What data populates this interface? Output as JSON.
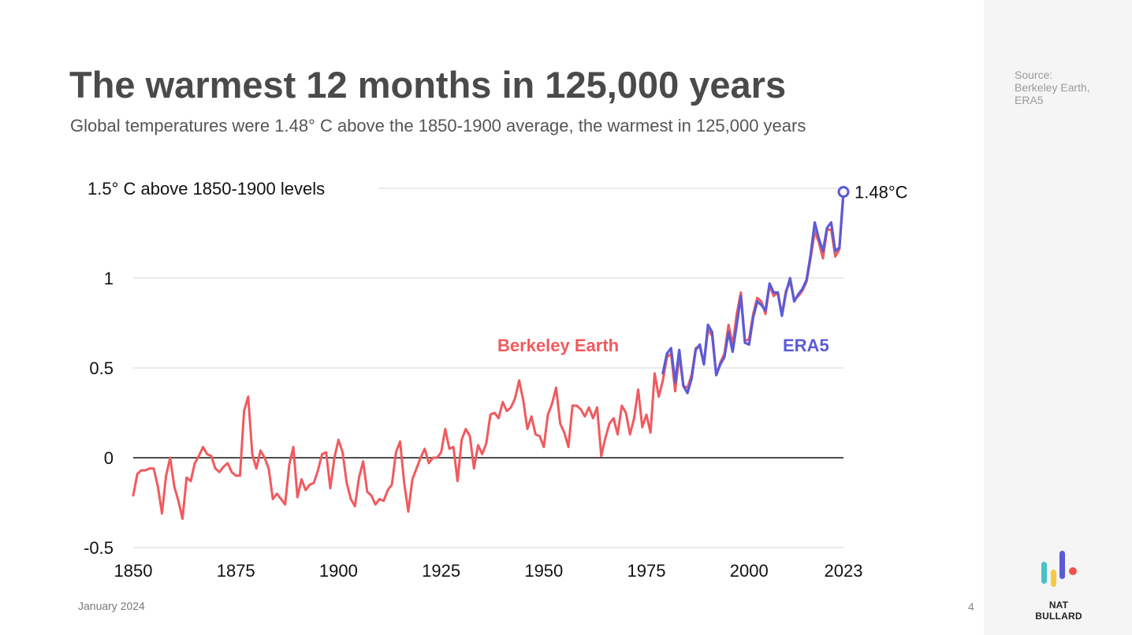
{
  "slide": {
    "title": "The warmest 12 months in 125,000 years",
    "subtitle": "Global temperatures were 1.48° C above the 1850-1900 average, the warmest in 125,000 years",
    "source_line1": "Source:",
    "source_line2": "Berkeley Earth,",
    "source_line3": "ERA5",
    "date": "January 2024",
    "page_number": "4",
    "brand": "NAT BULLARD",
    "logo_colors": [
      "#48c3c9",
      "#f7c948",
      "#5b5bd6",
      "#f0504f"
    ]
  },
  "chart_data": {
    "type": "line",
    "title": "The warmest 12 months in 125,000 years",
    "xlabel": "",
    "ylabel": "",
    "xlim": [
      1850,
      2023
    ],
    "ylim": [
      -0.5,
      1.5
    ],
    "grid": true,
    "x_ticks": [
      {
        "value": 1850,
        "label": "1850"
      },
      {
        "value": 1875,
        "label": "1875"
      },
      {
        "value": 1900,
        "label": "1900"
      },
      {
        "value": 1925,
        "label": "1925"
      },
      {
        "value": 1950,
        "label": "1950"
      },
      {
        "value": 1975,
        "label": "1975"
      },
      {
        "value": 2000,
        "label": "2000"
      },
      {
        "value": 2023,
        "label": "2023"
      }
    ],
    "y_ticks": [
      {
        "value": -0.5,
        "label": "-0.5",
        "color": "#e8484d"
      },
      {
        "value": 0,
        "label": "0",
        "color": "#111111"
      },
      {
        "value": 0.5,
        "label": "0.5",
        "color": "#111111"
      },
      {
        "value": 1,
        "label": "1",
        "color": "#111111"
      },
      {
        "value": 1.5,
        "label": "1.5° C above 1850-1900 levels",
        "color": "#111111"
      }
    ],
    "series": [
      {
        "name": "Berkeley Earth",
        "color": "#f05a5e",
        "x_start": 1850,
        "values": [
          -0.21,
          -0.09,
          -0.07,
          -0.07,
          -0.06,
          -0.06,
          -0.16,
          -0.31,
          -0.1,
          0.0,
          -0.16,
          -0.24,
          -0.34,
          -0.11,
          -0.13,
          -0.03,
          0.01,
          0.06,
          0.02,
          0.01,
          -0.06,
          -0.08,
          -0.05,
          -0.03,
          -0.08,
          -0.1,
          -0.1,
          0.26,
          0.34,
          0.02,
          -0.06,
          0.04,
          0.0,
          -0.06,
          -0.23,
          -0.2,
          -0.23,
          -0.26,
          -0.04,
          0.06,
          -0.22,
          -0.12,
          -0.18,
          -0.15,
          -0.14,
          -0.07,
          0.02,
          0.03,
          -0.17,
          0.0,
          0.1,
          0.03,
          -0.14,
          -0.23,
          -0.27,
          -0.11,
          -0.02,
          -0.19,
          -0.21,
          -0.26,
          -0.23,
          -0.24,
          -0.18,
          -0.15,
          0.03,
          0.09,
          -0.14,
          -0.3,
          -0.12,
          -0.06,
          0.0,
          0.05,
          -0.03,
          0.0,
          0.0,
          0.03,
          0.16,
          0.05,
          0.06,
          -0.13,
          0.1,
          0.16,
          0.12,
          -0.06,
          0.07,
          0.02,
          0.08,
          0.24,
          0.25,
          0.22,
          0.31,
          0.26,
          0.28,
          0.33,
          0.43,
          0.32,
          0.16,
          0.23,
          0.13,
          0.12,
          0.06,
          0.24,
          0.3,
          0.39,
          0.19,
          0.14,
          0.06,
          0.29,
          0.29,
          0.27,
          0.23,
          0.28,
          0.22,
          0.28,
          0.01,
          0.11,
          0.19,
          0.22,
          0.13,
          0.29,
          0.25,
          0.13,
          0.22,
          0.38,
          0.17,
          0.24,
          0.14,
          0.47,
          0.34,
          0.43,
          0.56,
          0.58,
          0.37,
          0.57,
          0.4,
          0.39,
          0.46,
          0.61,
          0.62,
          0.52,
          0.71,
          0.68,
          0.46,
          0.53,
          0.58,
          0.74,
          0.63,
          0.8,
          0.92,
          0.65,
          0.66,
          0.8,
          0.89,
          0.87,
          0.8,
          0.96,
          0.9,
          0.92,
          0.8,
          0.93,
          0.98,
          0.88,
          0.9,
          0.93,
          0.98,
          1.11,
          1.26,
          1.2,
          1.11,
          1.27,
          1.27,
          1.12,
          1.16,
          1.47
        ]
      },
      {
        "name": "ERA5",
        "color": "#5b5bd6",
        "x_start": 1979,
        "values": [
          0.47,
          0.58,
          0.61,
          0.42,
          0.6,
          0.4,
          0.36,
          0.44,
          0.6,
          0.63,
          0.52,
          0.74,
          0.7,
          0.46,
          0.52,
          0.56,
          0.7,
          0.59,
          0.74,
          0.9,
          0.64,
          0.63,
          0.78,
          0.87,
          0.85,
          0.82,
          0.97,
          0.92,
          0.92,
          0.79,
          0.92,
          1.0,
          0.87,
          0.91,
          0.94,
          0.99,
          1.13,
          1.31,
          1.22,
          1.15,
          1.28,
          1.31,
          1.15,
          1.17,
          1.48
        ]
      }
    ],
    "annotations": [
      {
        "text": "Berkeley Earth",
        "color": "#f05a5e"
      },
      {
        "text": "ERA5",
        "color": "#5b5bd6"
      },
      {
        "text": "1.48°C",
        "x": 2023,
        "y": 1.48,
        "color": "#111111"
      }
    ]
  }
}
